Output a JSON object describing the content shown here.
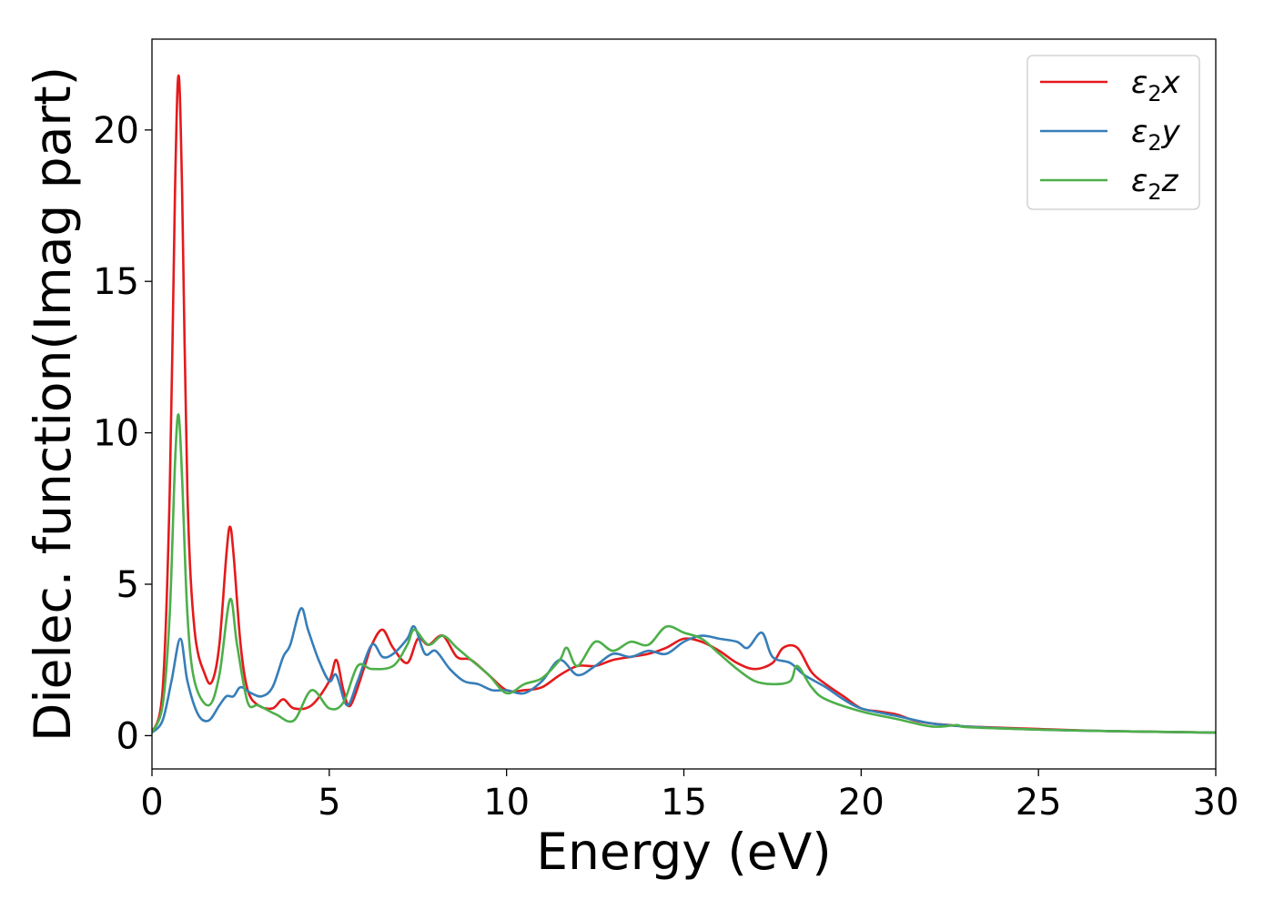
{
  "chart_data": {
    "type": "line",
    "title": "",
    "xlabel": "Energy (eV)",
    "ylabel": "Dielec. function(Imag part)",
    "xlim": [
      0,
      30
    ],
    "ylim": [
      -1.1,
      23
    ],
    "xticks": [
      0,
      5,
      10,
      15,
      20,
      25,
      30
    ],
    "yticks": [
      0,
      5,
      10,
      15,
      20
    ],
    "grid": false,
    "legend_position": "top-right",
    "series": [
      {
        "name": "ε₂x",
        "legend_main": "ε",
        "legend_sub": "2",
        "legend_suffix": "x",
        "color": "#e41a1c",
        "points": [
          [
            0,
            0.1
          ],
          [
            0.3,
            1.5
          ],
          [
            0.5,
            8
          ],
          [
            0.65,
            18
          ],
          [
            0.75,
            21.8
          ],
          [
            0.85,
            18
          ],
          [
            1.0,
            8
          ],
          [
            1.2,
            3.5
          ],
          [
            1.5,
            2.0
          ],
          [
            1.7,
            1.8
          ],
          [
            1.9,
            3.0
          ],
          [
            2.1,
            6.0
          ],
          [
            2.2,
            6.9
          ],
          [
            2.3,
            6.0
          ],
          [
            2.5,
            3.0
          ],
          [
            2.7,
            1.5
          ],
          [
            3.0,
            1.0
          ],
          [
            3.4,
            0.9
          ],
          [
            3.7,
            1.2
          ],
          [
            4.0,
            0.9
          ],
          [
            4.5,
            1.0
          ],
          [
            5.0,
            1.8
          ],
          [
            5.2,
            2.5
          ],
          [
            5.4,
            1.5
          ],
          [
            5.6,
            1.0
          ],
          [
            6.0,
            2.3
          ],
          [
            6.2,
            3.0
          ],
          [
            6.5,
            3.5
          ],
          [
            6.8,
            2.9
          ],
          [
            7.2,
            2.4
          ],
          [
            7.5,
            3.2
          ],
          [
            7.8,
            3.0
          ],
          [
            8.2,
            3.3
          ],
          [
            8.6,
            2.6
          ],
          [
            9.0,
            2.5
          ],
          [
            9.5,
            2.0
          ],
          [
            10.0,
            1.5
          ],
          [
            10.5,
            1.5
          ],
          [
            11.0,
            1.6
          ],
          [
            11.5,
            2.0
          ],
          [
            12.0,
            2.3
          ],
          [
            12.5,
            2.3
          ],
          [
            13.0,
            2.5
          ],
          [
            13.5,
            2.6
          ],
          [
            14.0,
            2.7
          ],
          [
            14.5,
            2.9
          ],
          [
            15.0,
            3.2
          ],
          [
            15.5,
            3.1
          ],
          [
            16.0,
            2.8
          ],
          [
            16.5,
            2.4
          ],
          [
            17.0,
            2.2
          ],
          [
            17.5,
            2.4
          ],
          [
            17.8,
            2.9
          ],
          [
            18.2,
            2.9
          ],
          [
            18.6,
            2.1
          ],
          [
            19.0,
            1.7
          ],
          [
            19.5,
            1.3
          ],
          [
            20.0,
            0.9
          ],
          [
            20.5,
            0.8
          ],
          [
            21.0,
            0.7
          ],
          [
            21.5,
            0.5
          ],
          [
            22.0,
            0.4
          ],
          [
            22.5,
            0.35
          ],
          [
            23.0,
            0.3
          ],
          [
            25.0,
            0.22
          ],
          [
            27.0,
            0.15
          ],
          [
            30.0,
            0.1
          ]
        ]
      },
      {
        "name": "ε₂y",
        "legend_main": "ε",
        "legend_sub": "2",
        "legend_suffix": "y",
        "color": "#377eb8",
        "points": [
          [
            0,
            0.1
          ],
          [
            0.3,
            0.5
          ],
          [
            0.55,
            1.8
          ],
          [
            0.8,
            3.2
          ],
          [
            1.0,
            1.8
          ],
          [
            1.3,
            0.7
          ],
          [
            1.6,
            0.5
          ],
          [
            1.9,
            1.0
          ],
          [
            2.1,
            1.3
          ],
          [
            2.3,
            1.3
          ],
          [
            2.5,
            1.6
          ],
          [
            2.8,
            1.4
          ],
          [
            3.1,
            1.3
          ],
          [
            3.4,
            1.6
          ],
          [
            3.7,
            2.6
          ],
          [
            3.9,
            3.0
          ],
          [
            4.2,
            4.2
          ],
          [
            4.4,
            3.5
          ],
          [
            4.7,
            2.5
          ],
          [
            5.0,
            1.8
          ],
          [
            5.2,
            2.0
          ],
          [
            5.5,
            1.0
          ],
          [
            5.8,
            1.8
          ],
          [
            6.2,
            3.0
          ],
          [
            6.5,
            2.6
          ],
          [
            6.8,
            2.7
          ],
          [
            7.2,
            3.2
          ],
          [
            7.4,
            3.6
          ],
          [
            7.7,
            2.7
          ],
          [
            8.0,
            2.8
          ],
          [
            8.4,
            2.2
          ],
          [
            8.8,
            1.8
          ],
          [
            9.2,
            1.7
          ],
          [
            9.6,
            1.5
          ],
          [
            10.0,
            1.5
          ],
          [
            10.5,
            1.4
          ],
          [
            11.0,
            1.8
          ],
          [
            11.5,
            2.5
          ],
          [
            12.0,
            2.0
          ],
          [
            12.5,
            2.3
          ],
          [
            13.0,
            2.7
          ],
          [
            13.5,
            2.6
          ],
          [
            14.0,
            2.8
          ],
          [
            14.5,
            2.7
          ],
          [
            15.0,
            3.1
          ],
          [
            15.5,
            3.3
          ],
          [
            16.0,
            3.2
          ],
          [
            16.5,
            3.1
          ],
          [
            16.8,
            2.9
          ],
          [
            17.2,
            3.4
          ],
          [
            17.5,
            2.6
          ],
          [
            18.0,
            2.4
          ],
          [
            18.4,
            2.0
          ],
          [
            19.0,
            1.6
          ],
          [
            19.5,
            1.2
          ],
          [
            20.0,
            0.9
          ],
          [
            21.0,
            0.65
          ],
          [
            22.0,
            0.4
          ],
          [
            23.0,
            0.3
          ],
          [
            25.0,
            0.2
          ],
          [
            27.0,
            0.15
          ],
          [
            30.0,
            0.1
          ]
        ]
      },
      {
        "name": "ε₂z",
        "legend_main": "ε",
        "legend_sub": "2",
        "legend_suffix": "z",
        "color": "#4daf4a",
        "points": [
          [
            0,
            0.1
          ],
          [
            0.3,
            1.0
          ],
          [
            0.5,
            4
          ],
          [
            0.65,
            9
          ],
          [
            0.75,
            10.6
          ],
          [
            0.85,
            8.5
          ],
          [
            1.0,
            4
          ],
          [
            1.2,
            1.8
          ],
          [
            1.6,
            1.0
          ],
          [
            1.9,
            2.0
          ],
          [
            2.2,
            4.5
          ],
          [
            2.4,
            3.0
          ],
          [
            2.7,
            1.1
          ],
          [
            3.0,
            1.0
          ],
          [
            3.5,
            0.7
          ],
          [
            4.0,
            0.5
          ],
          [
            4.5,
            1.5
          ],
          [
            5.0,
            0.9
          ],
          [
            5.4,
            1.1
          ],
          [
            5.8,
            2.3
          ],
          [
            6.2,
            2.2
          ],
          [
            6.8,
            2.3
          ],
          [
            7.2,
            3.0
          ],
          [
            7.4,
            3.5
          ],
          [
            7.8,
            3.0
          ],
          [
            8.2,
            3.3
          ],
          [
            8.6,
            2.9
          ],
          [
            9.0,
            2.5
          ],
          [
            9.5,
            2.0
          ],
          [
            10.0,
            1.4
          ],
          [
            10.5,
            1.7
          ],
          [
            11.0,
            1.9
          ],
          [
            11.5,
            2.5
          ],
          [
            11.7,
            2.9
          ],
          [
            12.0,
            2.3
          ],
          [
            12.5,
            3.1
          ],
          [
            13.0,
            2.8
          ],
          [
            13.5,
            3.1
          ],
          [
            14.0,
            3.0
          ],
          [
            14.5,
            3.6
          ],
          [
            15.0,
            3.4
          ],
          [
            15.5,
            3.2
          ],
          [
            16.0,
            2.7
          ],
          [
            16.5,
            2.2
          ],
          [
            17.0,
            1.8
          ],
          [
            17.5,
            1.7
          ],
          [
            18.0,
            1.8
          ],
          [
            18.2,
            2.3
          ],
          [
            18.6,
            1.6
          ],
          [
            19.0,
            1.2
          ],
          [
            20.0,
            0.8
          ],
          [
            21.0,
            0.55
          ],
          [
            22.0,
            0.3
          ],
          [
            22.7,
            0.35
          ],
          [
            23.0,
            0.28
          ],
          [
            25.0,
            0.2
          ],
          [
            27.0,
            0.15
          ],
          [
            30.0,
            0.1
          ]
        ]
      }
    ]
  }
}
